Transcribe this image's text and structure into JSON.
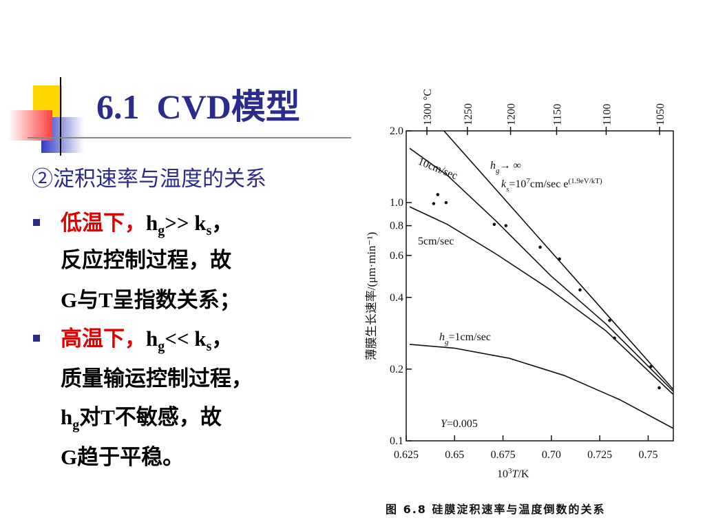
{
  "slide": {
    "title": "6.1  CVD模型",
    "subtitle": "②淀积速率与温度的关系",
    "bullets": [
      {
        "lines": [
          [
            "低温下，",
            "h",
            "g",
            ">> k",
            "s",
            "，"
          ],
          [
            "反应控制过程，故"
          ],
          [
            "G与T呈指数关系；"
          ]
        ]
      },
      {
        "lines": [
          [
            "高温下，",
            "h",
            "g",
            "<< k",
            "s",
            "，"
          ],
          [
            "质量输运控制过程，"
          ],
          [
            "h",
            "g",
            "对T不敏感，故"
          ],
          [
            "G趋于平稳。"
          ]
        ]
      }
    ]
  },
  "chart_data": {
    "type": "line",
    "caption": "图 6.8   硅膜淀积速率与温度倒数的关系",
    "xlabel": [
      "10",
      "3",
      "T",
      "/K"
    ],
    "ylabel": "薄膜生长速率/(μm·min⁻¹)",
    "log_y": true,
    "xlim": [
      0.625,
      0.763
    ],
    "ylim": [
      0.1,
      2.0
    ],
    "xticks": [
      0.625,
      0.65,
      0.675,
      {
        "value": 0.7,
        "label": "0.70"
      },
      0.725,
      0.75
    ],
    "yticks": [
      0.1,
      0.2,
      0.4,
      0.6,
      0.8,
      {
        "value": 1,
        "label": "1.0"
      },
      {
        "value": 2,
        "label": "2.0"
      }
    ],
    "x2ticks": [
      {
        "value": 0.6357,
        "label": "1300 °C"
      },
      {
        "value": 0.6566,
        "label": "1250"
      },
      {
        "value": 0.6789,
        "label": "1200"
      },
      {
        "value": 0.7027,
        "label": "1150"
      },
      {
        "value": 0.7283,
        "label": "1100"
      },
      {
        "value": 0.7559,
        "label": "1050"
      }
    ],
    "series": [
      {
        "label": [
          "h",
          "g",
          "→ ∞"
        ],
        "color": "#111111",
        "x": [
          0.6445,
          0.7628
        ],
        "values": [
          2.0,
          0.165
        ]
      },
      {
        "name": "10cm/sec",
        "color": "#111111",
        "x": [
          0.6268,
          0.6463,
          0.6712,
          0.6996,
          0.7281,
          0.7628
        ],
        "values": [
          1.69,
          1.3,
          0.84,
          0.494,
          0.31,
          0.162
        ]
      },
      {
        "name": "5cm/sec",
        "color": "#111111",
        "x": [
          0.6268,
          0.6463,
          0.6712,
          0.6996,
          0.7281,
          0.7628
        ],
        "values": [
          0.96,
          0.81,
          0.61,
          0.43,
          0.29,
          0.157
        ]
      },
      {
        "label": [
          "h",
          "g",
          "=1cm/sec"
        ],
        "color": "#111111",
        "x": [
          0.6268,
          0.6498,
          0.6783,
          0.7067,
          0.7352,
          0.7628
        ],
        "values": [
          0.254,
          0.245,
          0.222,
          0.188,
          0.149,
          0.113
        ]
      }
    ],
    "points": {
      "color": "#111111",
      "x": [
        0.6392,
        0.6413,
        0.6456,
        0.6705,
        0.6765,
        0.6942,
        0.7042,
        0.7148,
        0.7301,
        0.7326,
        0.7514,
        0.7557
      ],
      "values": [
        0.99,
        1.08,
        1.0,
        0.81,
        0.8,
        0.65,
        0.58,
        0.43,
        0.32,
        0.27,
        0.205,
        0.167
      ]
    },
    "annotations": {
      "ks": [
        "k",
        "s",
        "=10",
        "7",
        "cm/sec e",
        "(1.9eV/kT)"
      ],
      "Y": [
        "Y",
        "=0.005"
      ]
    }
  }
}
